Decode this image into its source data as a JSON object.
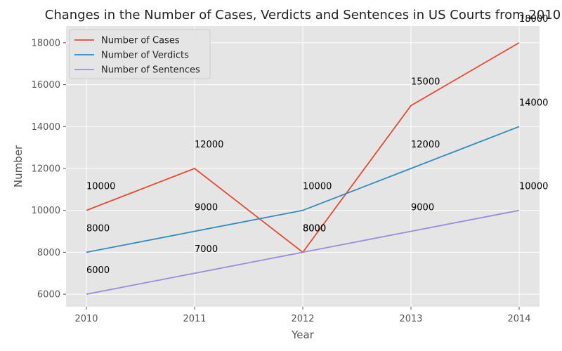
{
  "chart_data": {
    "type": "line",
    "title": "Changes in the Number of Cases, Verdicts and Sentences in US Courts from 2010",
    "xlabel": "Year",
    "ylabel": "Number",
    "categories": [
      "2010",
      "2011",
      "2012",
      "2013",
      "2014"
    ],
    "yticks": [
      "6000",
      "8000",
      "10000",
      "12000",
      "14000",
      "16000",
      "18000"
    ],
    "ylim": [
      5400,
      18800
    ],
    "grid": true,
    "legend_position": "upper left",
    "series": [
      {
        "name": "Number of Cases",
        "color": "#E24A33",
        "values": [
          10000,
          12000,
          8000,
          15000,
          18000
        ],
        "labels": [
          "10000",
          "12000",
          "8000",
          "15000",
          "18000"
        ]
      },
      {
        "name": "Number of Verdicts",
        "color": "#348ABD",
        "values": [
          8000,
          9000,
          10000,
          12000,
          14000
        ],
        "labels": [
          "8000",
          "9000",
          "10000",
          "12000",
          "14000"
        ]
      },
      {
        "name": "Number of Sentences",
        "color": "#988ED5",
        "values": [
          6000,
          7000,
          8000,
          9000,
          10000
        ],
        "labels": [
          "6000",
          "7000",
          "8000",
          "9000",
          "10000"
        ]
      }
    ]
  }
}
